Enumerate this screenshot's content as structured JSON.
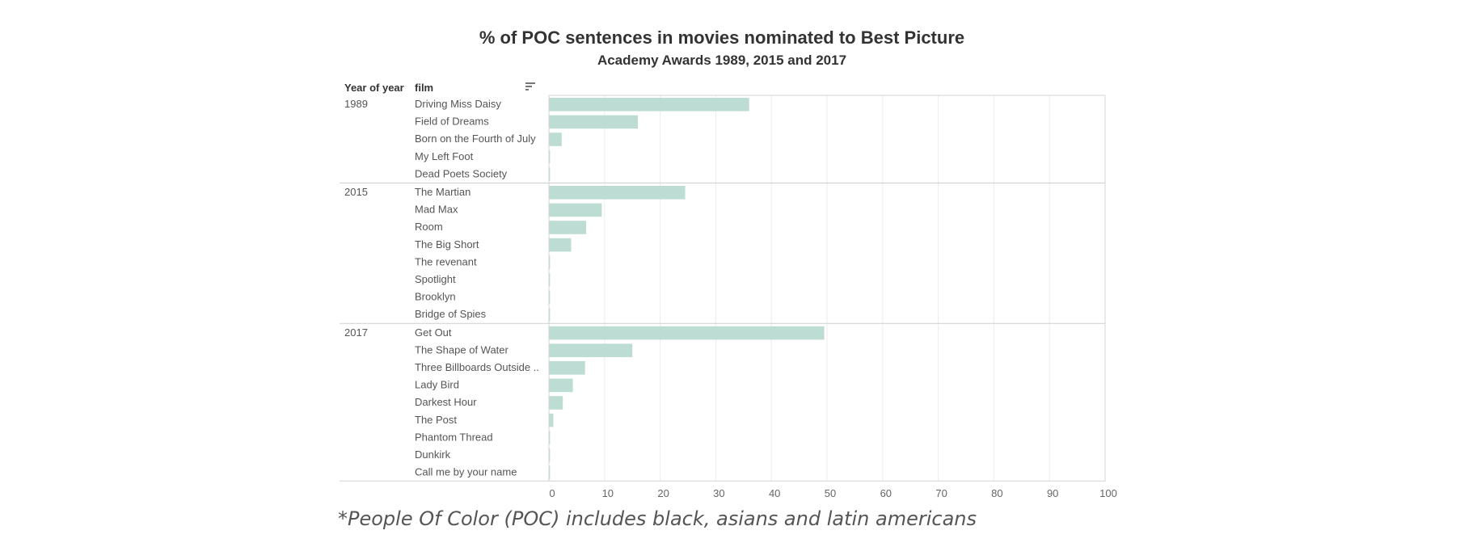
{
  "headers": {
    "year": "Year of year",
    "film": "film"
  },
  "footnote": "*People Of Color (POC) includes black, asians and latin americans",
  "colors": {
    "bar": "#bddcd4",
    "grid": "#ececec",
    "frame": "#d4d4d4",
    "text": "#555555"
  },
  "chart_data": {
    "type": "bar",
    "orientation": "horizontal",
    "title": "% of POC sentences in movies nominated to Best Picture",
    "subtitle": "Academy Awards 1989, 2015 and 2017",
    "xlim": [
      0,
      100
    ],
    "xticks": [
      0,
      10,
      20,
      30,
      40,
      50,
      60,
      70,
      80,
      90,
      100
    ],
    "grid": true,
    "groups": [
      {
        "year": "1989",
        "films": [
          "Driving Miss Daisy",
          "Field of Dreams",
          "Born on the Fourth of July",
          "My Left Foot",
          "Dead Poets Society"
        ],
        "values": [
          36,
          16,
          2.3,
          0.2,
          0.2
        ]
      },
      {
        "year": "2015",
        "films": [
          "The Martian",
          "Mad Max",
          "Room",
          "The Big Short",
          "The revenant",
          "Spotlight",
          "Brooklyn",
          "Bridge of Spies"
        ],
        "values": [
          24.5,
          9.5,
          6.7,
          4,
          0.2,
          0.2,
          0.2,
          0.2
        ]
      },
      {
        "year": "2017",
        "films": [
          "Get Out",
          "The Shape of Water",
          "Three Billboards Outside ..",
          "Lady Bird",
          "Darkest Hour",
          "The Post",
          "Phantom Thread",
          "Dunkirk",
          "Call me by your name"
        ],
        "values": [
          49.5,
          15,
          6.5,
          4.3,
          2.5,
          0.8,
          0.2,
          0.2,
          0.2
        ]
      }
    ]
  }
}
